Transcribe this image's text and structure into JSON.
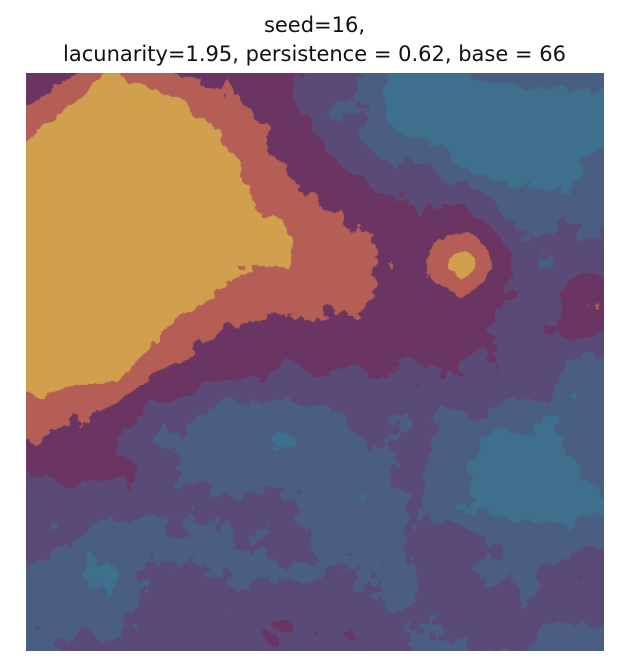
{
  "chart_data": {
    "type": "heatmap",
    "title_lines": [
      "seed=16,",
      "lacunarity=1.95, persistence = 0.62, base = 66"
    ],
    "xlabel": "",
    "ylabel": "",
    "axes_visible": false,
    "grid": false,
    "colormap": [
      "#3e6f8c",
      "#4a5e82",
      "#5a4a78",
      "#6a3562",
      "#b55e55",
      "#d1a04e"
    ],
    "blobs": [
      {
        "x": 0.17,
        "y": 0.24,
        "sx": 0.3,
        "sy": 0.22,
        "a": 2.6
      },
      {
        "x": 0.06,
        "y": 0.5,
        "sx": 0.2,
        "sy": 0.3,
        "a": 1.8
      },
      {
        "x": 0.2,
        "y": 0.1,
        "sx": 0.18,
        "sy": 0.14,
        "a": 1.3
      },
      {
        "x": 0.12,
        "y": 0.27,
        "sx": 0.12,
        "sy": 0.06,
        "a": 0.9
      },
      {
        "x": 0.14,
        "y": 0.5,
        "sx": 0.09,
        "sy": 0.07,
        "a": 0.6
      },
      {
        "x": 0.35,
        "y": 0.4,
        "sx": 0.2,
        "sy": 0.18,
        "a": 0.5
      },
      {
        "x": 0.76,
        "y": 0.32,
        "sx": 0.06,
        "sy": 0.06,
        "a": 1.6
      },
      {
        "x": 0.66,
        "y": 0.38,
        "sx": 0.3,
        "sy": 0.22,
        "a": 0.9
      },
      {
        "x": 0.47,
        "y": 0.25,
        "sx": 0.2,
        "sy": 0.12,
        "a": 0.5
      },
      {
        "x": 0.98,
        "y": 0.4,
        "sx": 0.06,
        "sy": 0.06,
        "a": 1.2
      },
      {
        "x": 0.72,
        "y": 0.08,
        "sx": 0.2,
        "sy": 0.12,
        "a": -1.0
      },
      {
        "x": 0.88,
        "y": 0.13,
        "sx": 0.12,
        "sy": 0.12,
        "a": -1.0
      },
      {
        "x": 0.85,
        "y": 0.7,
        "sx": 0.18,
        "sy": 0.12,
        "a": -1.1
      },
      {
        "x": 0.3,
        "y": 0.62,
        "sx": 0.22,
        "sy": 0.12,
        "a": -0.9
      },
      {
        "x": 0.05,
        "y": 0.85,
        "sx": 0.15,
        "sy": 0.15,
        "a": -0.9
      },
      {
        "x": 0.45,
        "y": 0.9,
        "sx": 0.12,
        "sy": 0.1,
        "a": 0.3
      },
      {
        "x": 0.25,
        "y": 0.92,
        "sx": 0.1,
        "sy": 0.08,
        "a": 0.3
      },
      {
        "x": 0.88,
        "y": 0.9,
        "sx": 0.18,
        "sy": 0.1,
        "a": 0.25
      }
    ]
  }
}
